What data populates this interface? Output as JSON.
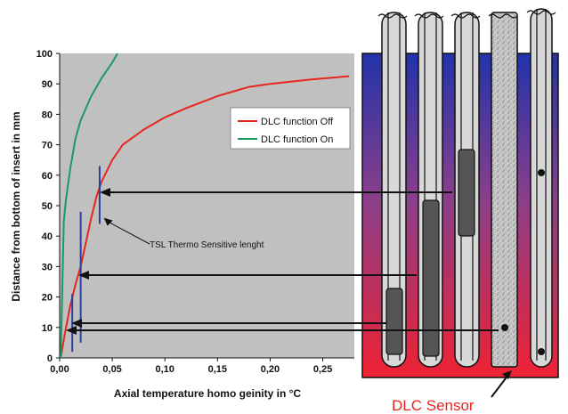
{
  "chart_data": {
    "type": "line",
    "title": "",
    "xlabel": "Axial temperature homo geinity in °C",
    "ylabel": "Distance from bottom of insert in mm",
    "xlim": [
      0,
      0.28
    ],
    "ylim": [
      0,
      100
    ],
    "x_ticks": [
      "0,00",
      "0,05",
      "0,10",
      "0,15",
      "0,20",
      "0,25"
    ],
    "x_tick_values": [
      0,
      0.05,
      0.1,
      0.15,
      0.2,
      0.25
    ],
    "y_ticks": [
      "0",
      "10",
      "20",
      "30",
      "40",
      "50",
      "60",
      "70",
      "80",
      "90",
      "100"
    ],
    "y_tick_values": [
      0,
      10,
      20,
      30,
      40,
      50,
      60,
      70,
      80,
      90,
      100
    ],
    "grid": false,
    "legend_position": "top-right",
    "series": [
      {
        "name": "DLC function Off",
        "color": "#e8261e",
        "points": [
          [
            0.001,
            0
          ],
          [
            0.005,
            8
          ],
          [
            0.01,
            17
          ],
          [
            0.015,
            24
          ],
          [
            0.02,
            30
          ],
          [
            0.025,
            38
          ],
          [
            0.03,
            46
          ],
          [
            0.035,
            53
          ],
          [
            0.04,
            58
          ],
          [
            0.05,
            65
          ],
          [
            0.06,
            70
          ],
          [
            0.08,
            75
          ],
          [
            0.1,
            79
          ],
          [
            0.12,
            82
          ],
          [
            0.15,
            86
          ],
          [
            0.18,
            89
          ],
          [
            0.2,
            90
          ],
          [
            0.24,
            91.5
          ],
          [
            0.275,
            92.5
          ]
        ]
      },
      {
        "name": "DLC function On",
        "color": "#1a9a62",
        "points": [
          [
            0.001,
            0
          ],
          [
            0.002,
            15
          ],
          [
            0.003,
            30
          ],
          [
            0.004,
            45
          ],
          [
            0.006,
            52
          ],
          [
            0.01,
            62
          ],
          [
            0.015,
            72
          ],
          [
            0.02,
            78
          ],
          [
            0.03,
            86
          ],
          [
            0.04,
            92
          ],
          [
            0.05,
            97
          ],
          [
            0.055,
            100
          ]
        ]
      }
    ],
    "markers": [
      {
        "x": 0.038,
        "y_from": 44,
        "y_to": 63,
        "color": "#2b3fa0"
      },
      {
        "x": 0.02,
        "y_from": 5,
        "y_to": 48,
        "color": "#2b3fa0"
      },
      {
        "x": 0.012,
        "y_from": 2,
        "y_to": 21,
        "color": "#2b3fa0"
      }
    ],
    "annotation": {
      "text": "TSL Thermo Sensitive lenght",
      "x": 0.042,
      "y": 46
    }
  },
  "illustration": {
    "label": "DLC Sensor",
    "colors": {
      "gradient_top": "#2233aa",
      "gradient_mid": "#8a3f8a",
      "gradient_bottom": "#ee2233",
      "probe_fill": "#d8d8d8",
      "element_fill": "#555555"
    }
  }
}
